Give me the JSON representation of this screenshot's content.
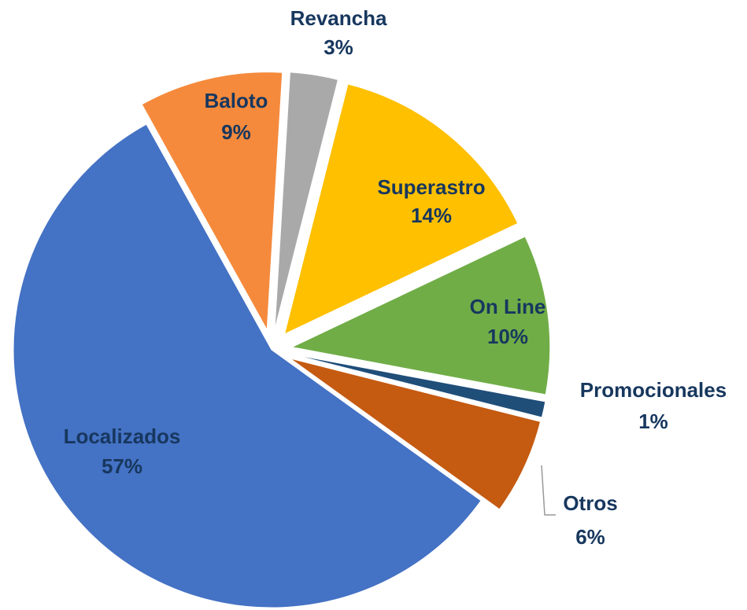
{
  "chart_data": {
    "type": "pie",
    "categories": [
      "Baloto",
      "Revancha",
      "Superastro",
      "On Line",
      "Promocionales",
      "Otros",
      "Localizados"
    ],
    "values": [
      9,
      3,
      14,
      10,
      1,
      6,
      57
    ],
    "value_labels": [
      "9%",
      "3%",
      "14%",
      "10%",
      "1%",
      "6%",
      "57%"
    ],
    "colors": [
      "#f58a3c",
      "#a9a9a9",
      "#ffc000",
      "#70ad47",
      "#1f4e79",
      "#c55a11",
      "#4472c4"
    ]
  }
}
